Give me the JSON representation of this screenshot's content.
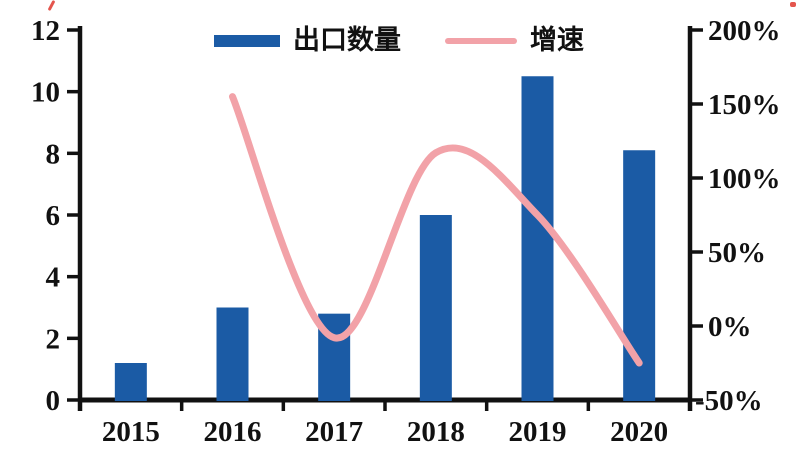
{
  "chart_data": {
    "type": "combo-bar-line",
    "title": "",
    "categories": [
      "2015",
      "2016",
      "2017",
      "2018",
      "2019",
      "2020"
    ],
    "series": [
      {
        "name": "出口数量",
        "type": "bar",
        "axis": "left",
        "color": "#1B5BA5",
        "values": [
          1.2,
          3.0,
          2.8,
          6.0,
          10.5,
          8.1
        ]
      },
      {
        "name": "增速",
        "type": "line",
        "axis": "right",
        "unit": "%",
        "color": "#F2A2A8",
        "values": [
          null,
          155,
          -8,
          117,
          75,
          -25
        ]
      }
    ],
    "left_axis": {
      "min": 0,
      "max": 12,
      "step": 2,
      "tick_labels": [
        "0",
        "2",
        "4",
        "6",
        "8",
        "10",
        "12"
      ]
    },
    "right_axis": {
      "min": -50,
      "max": 200,
      "step": 50,
      "tick_labels": [
        "-50%",
        "0%",
        "50%",
        "100%",
        "150%",
        "200%"
      ]
    },
    "grid": false,
    "legend_position": "top-center",
    "axis_color": "#111111",
    "text_color": "#111111"
  },
  "artifacts": {
    "corner_mark_color": "#DF372E"
  }
}
